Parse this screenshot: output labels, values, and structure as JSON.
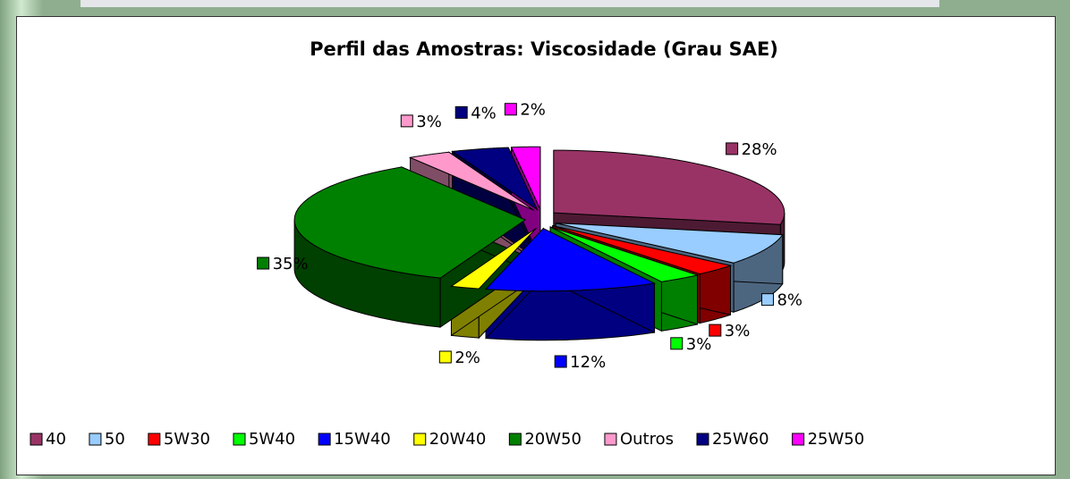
{
  "chart_data": {
    "type": "pie",
    "title": "Perfil das Amostras: Viscosidade (Grau SAE)",
    "categories": [
      "40",
      "50",
      "5W30",
      "5W40",
      "15W40",
      "20W40",
      "20W50",
      "Outros",
      "25W60",
      "25W50"
    ],
    "values": [
      28,
      8,
      3,
      3,
      12,
      2,
      35,
      3,
      4,
      2
    ],
    "value_labels": [
      "28%",
      "8%",
      "3%",
      "3%",
      "12%",
      "2%",
      "35%",
      "3%",
      "4%",
      "2%"
    ],
    "colors": [
      "#993366",
      "#99ccff",
      "#ff0000",
      "#00ff00",
      "#0000ff",
      "#ffff00",
      "#008000",
      "#ff99cc",
      "#000080",
      "#ff00ff"
    ]
  }
}
